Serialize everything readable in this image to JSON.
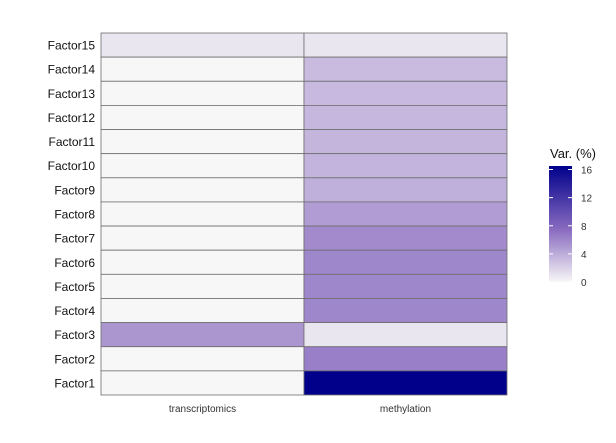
{
  "chart_data": {
    "type": "heatmap",
    "x_categories": [
      "transcriptomics",
      "methylation"
    ],
    "y_categories": [
      "Factor15",
      "Factor14",
      "Factor13",
      "Factor12",
      "Factor11",
      "Factor10",
      "Factor9",
      "Factor8",
      "Factor7",
      "Factor6",
      "Factor5",
      "Factor4",
      "Factor3",
      "Factor2",
      "Factor1"
    ],
    "values": [
      [
        0.9,
        0.9
      ],
      [
        0.0,
        3.2
      ],
      [
        0.0,
        3.3
      ],
      [
        0.0,
        3.4
      ],
      [
        0.0,
        3.5
      ],
      [
        0.0,
        3.6
      ],
      [
        0.0,
        3.8
      ],
      [
        0.0,
        4.8
      ],
      [
        0.0,
        5.8
      ],
      [
        0.0,
        6.0
      ],
      [
        0.0,
        6.0
      ],
      [
        0.0,
        6.0
      ],
      [
        5.2,
        0.9
      ],
      [
        0.0,
        6.4
      ],
      [
        0.0,
        16.5
      ]
    ],
    "colorbar": {
      "title": "Var. (%)",
      "ticks": [
        0,
        4,
        8,
        12,
        16
      ],
      "range": [
        0,
        16.5
      ],
      "low_color": "#f7f7f7",
      "mid_color": "#8a6cc0",
      "high_color": "#00008b"
    },
    "grid": false,
    "legend_position": "right"
  }
}
